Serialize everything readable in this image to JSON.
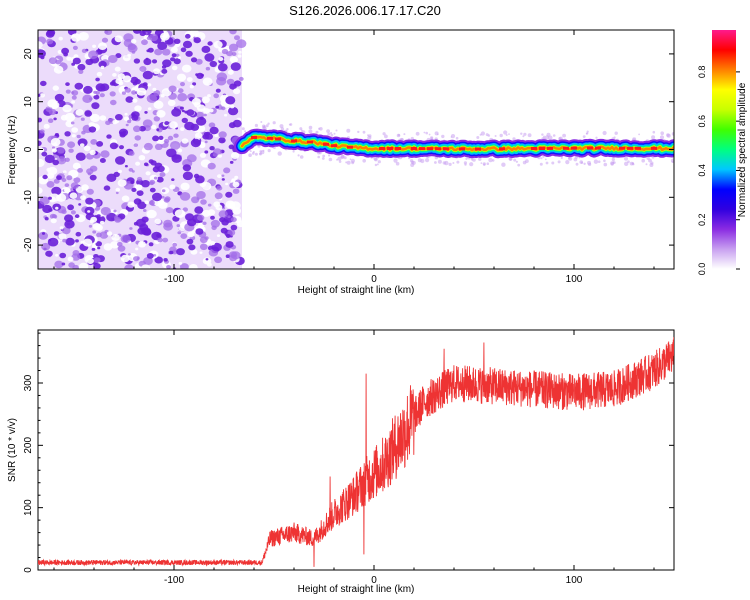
{
  "title": "S126.2026.006.17.17.C20",
  "chart_data": [
    {
      "type": "heatmap",
      "name": "spectrogram",
      "xlabel": "Height of straight line (km)",
      "ylabel": "Frequency (Hz)",
      "xlim": [
        -168,
        150
      ],
      "ylim": [
        -25,
        25
      ],
      "xticks": [
        -100,
        0,
        100
      ],
      "yticks": [
        -20,
        -10,
        0,
        10,
        20
      ],
      "noise_region_x": [
        -168,
        -66
      ],
      "signal_start_x": -66,
      "signal_end_x": 150,
      "signal_frequency_track": [
        {
          "x": -66,
          "f": 1.0
        },
        {
          "x": -60,
          "f": 2.5
        },
        {
          "x": -50,
          "f": 2.3
        },
        {
          "x": -40,
          "f": 1.8
        },
        {
          "x": -30,
          "f": 1.5
        },
        {
          "x": -20,
          "f": 0.8
        },
        {
          "x": -10,
          "f": 0.4
        },
        {
          "x": 0,
          "f": 0.2
        },
        {
          "x": 20,
          "f": 0.2
        },
        {
          "x": 50,
          "f": 0.1
        },
        {
          "x": 80,
          "f": 0.2
        },
        {
          "x": 110,
          "f": 0.3
        },
        {
          "x": 150,
          "f": 0.2
        }
      ],
      "colorbar": {
        "label": "Normalized spectral amplitude",
        "range": [
          0,
          0.97
        ],
        "ticks": [
          "0.0",
          "0.2",
          "0.4",
          "0.6",
          "0.8"
        ],
        "colors": [
          "#ffffff",
          "#c8a0f0",
          "#8a2be2",
          "#3000e0",
          "#0000ff",
          "#00c8ff",
          "#00ff80",
          "#40ff00",
          "#c8ff00",
          "#ffff00",
          "#ff8000",
          "#ff0000",
          "#ff1a8c"
        ]
      }
    },
    {
      "type": "line",
      "name": "snr",
      "xlabel": "Height of straight line (km)",
      "ylabel": "SNR (10 * v/v)",
      "xlim": [
        -168,
        150
      ],
      "ylim": [
        0,
        385
      ],
      "xticks": [
        -100,
        0,
        100
      ],
      "yticks": [
        0,
        100,
        200,
        300
      ],
      "color": "#ee3333",
      "trend": [
        {
          "x": -168,
          "y": 12
        },
        {
          "x": -56,
          "y": 12
        },
        {
          "x": -52,
          "y": 50
        },
        {
          "x": -40,
          "y": 60
        },
        {
          "x": -30,
          "y": 50
        },
        {
          "x": -20,
          "y": 90
        },
        {
          "x": -10,
          "y": 120
        },
        {
          "x": -5,
          "y": 140
        },
        {
          "x": 5,
          "y": 170
        },
        {
          "x": 15,
          "y": 220
        },
        {
          "x": 25,
          "y": 270
        },
        {
          "x": 40,
          "y": 300
        },
        {
          "x": 60,
          "y": 295
        },
        {
          "x": 80,
          "y": 290
        },
        {
          "x": 100,
          "y": 285
        },
        {
          "x": 120,
          "y": 290
        },
        {
          "x": 140,
          "y": 320
        },
        {
          "x": 150,
          "y": 345
        }
      ],
      "spikes": [
        {
          "x": -4,
          "y": 315
        },
        {
          "x": -5,
          "y": 25
        },
        {
          "x": -22,
          "y": 150
        },
        {
          "x": -30,
          "y": 5
        },
        {
          "x": 35,
          "y": 355
        },
        {
          "x": 55,
          "y": 365
        }
      ]
    }
  ]
}
